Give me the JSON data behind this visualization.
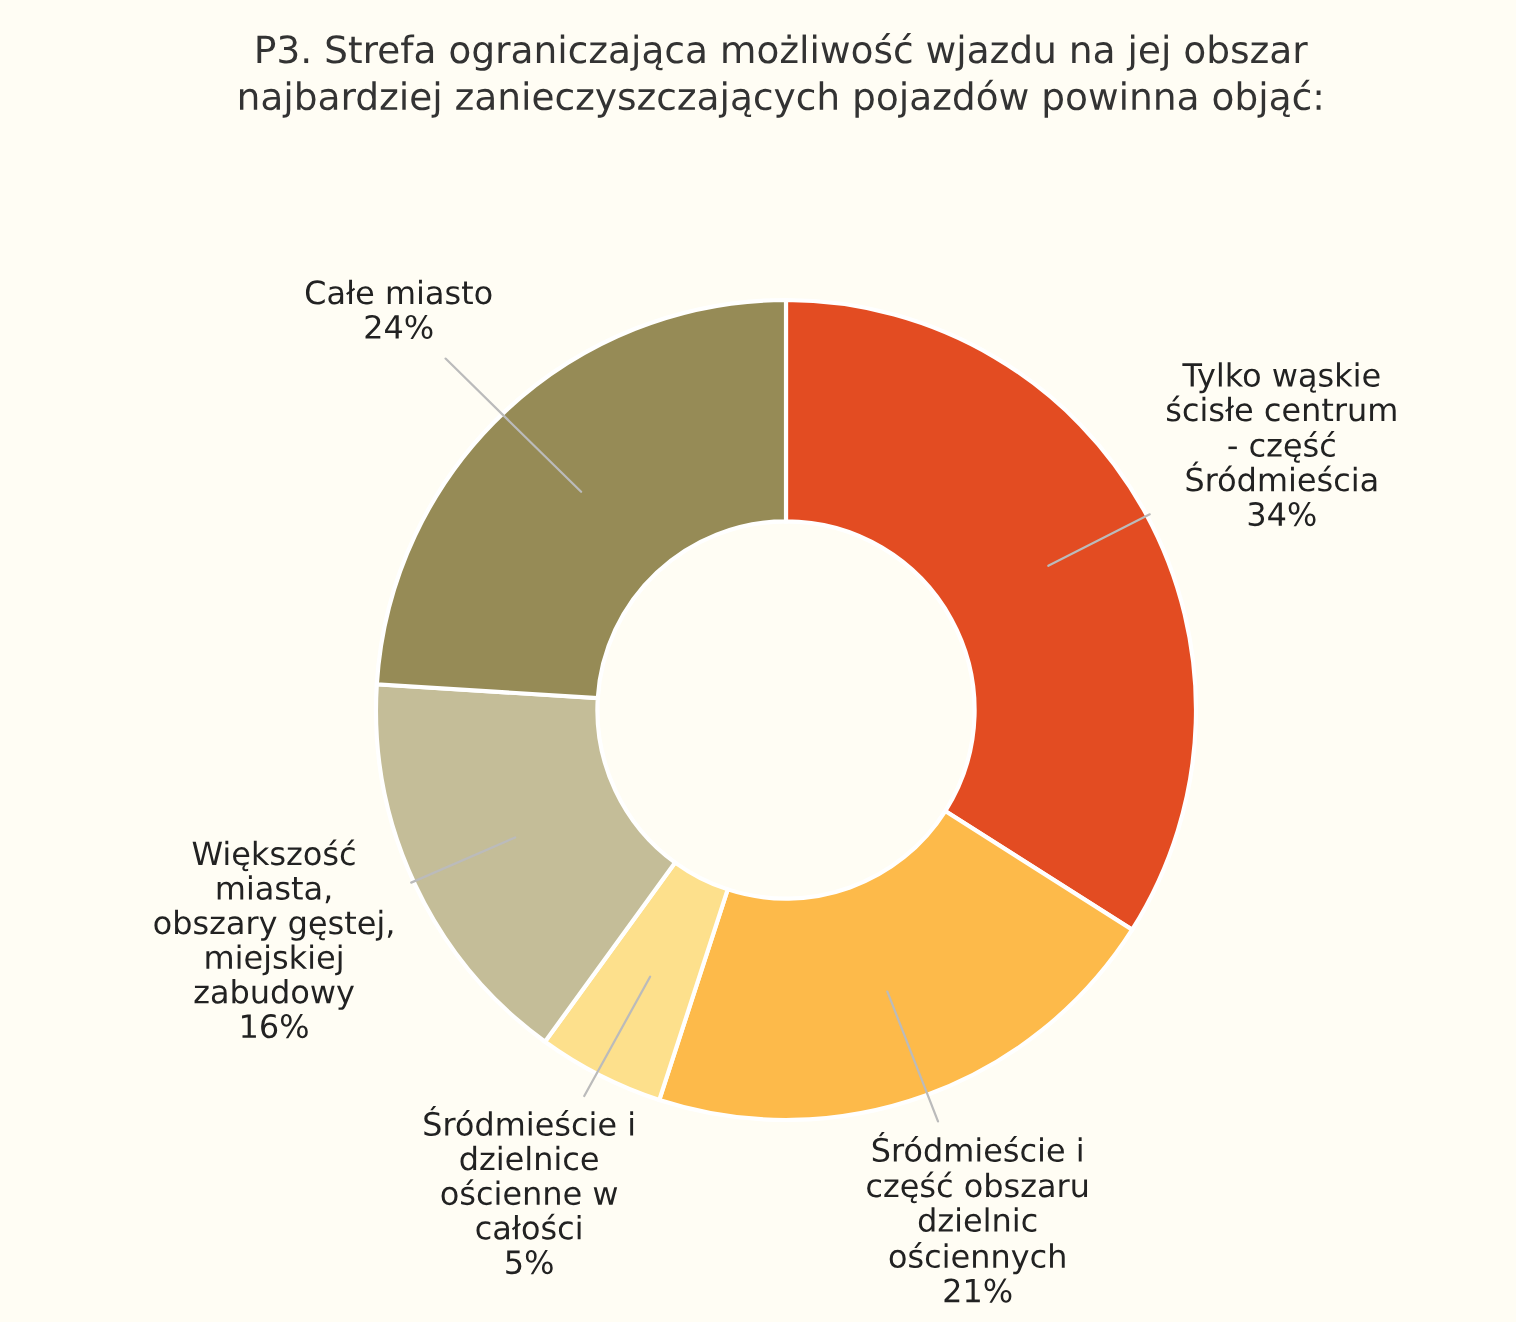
{
  "chart_data": {
    "type": "donut",
    "title": "P3. Strefa ograniczająca możliwość wjazdu na jej obszar\nnajbardziej zanieczyszczających pojazdów powinna objąć:",
    "categories": [
      "Tylko wąskie\nścisłe centrum\n- część\nŚródmieścia",
      "Śródmieście i\nczęść obszaru\ndzielnic\nościennych",
      "Śródmieście i\ndzielnice\nościenne w\ncałości",
      "Większość\nmiasta,\nobszary gęstej,\nmiejskiej\nzabudowy",
      "Całe miasto"
    ],
    "values": [
      34,
      21,
      5,
      16,
      24
    ],
    "value_labels": [
      "34%",
      "21%",
      "5%",
      "16%",
      "24%"
    ],
    "colors": [
      "#e34c22",
      "#fdba4a",
      "#fde08c",
      "#c4bd98",
      "#968b56"
    ],
    "legend": false
  }
}
